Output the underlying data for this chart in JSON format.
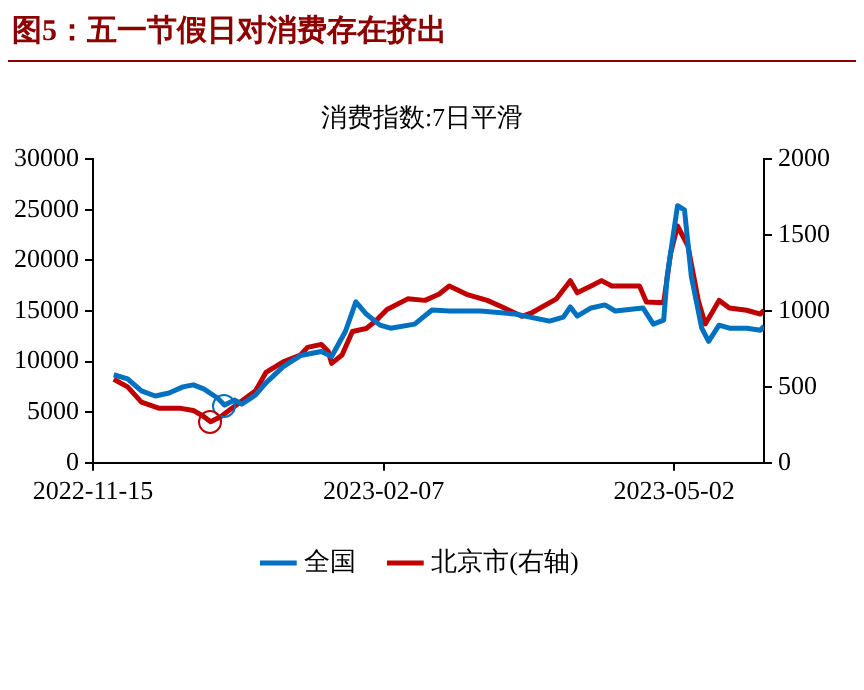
{
  "chart_data": {
    "type": "line",
    "title": "图5：五一节假日对消费存在挤出",
    "subtitle": "消费指数:7日平滑",
    "xlim": [
      "2022-11-15",
      "2023-05-28"
    ],
    "xticks": [
      "2022-11-15",
      "2023-02-07",
      "2023-05-02"
    ],
    "ylim": [
      0,
      30000
    ],
    "yticks": [
      0,
      5000,
      10000,
      15000,
      20000,
      25000,
      30000
    ],
    "y2lim": [
      0,
      2000
    ],
    "y2ticks": [
      0,
      500,
      1000,
      1500,
      2000
    ],
    "grid": false,
    "legend": "bottom",
    "marker": "none",
    "line_style": "solid",
    "series": [
      {
        "name": "全国",
        "color": "#0070c0",
        "x": [
          "2022-11-21",
          "2022-11-25",
          "2022-11-29",
          "2022-12-03",
          "2022-12-07",
          "2022-12-11",
          "2022-12-14",
          "2022-12-17",
          "2022-12-21",
          "2022-12-23",
          "2022-12-26",
          "2022-12-28",
          "2023-01-01",
          "2023-01-04",
          "2023-01-09",
          "2023-01-14",
          "2023-01-20",
          "2023-01-23",
          "2023-01-27",
          "2023-01-30",
          "2023-02-02",
          "2023-02-06",
          "2023-02-09",
          "2023-02-16",
          "2023-02-21",
          "2023-02-26",
          "2023-03-07",
          "2023-03-17",
          "2023-03-27",
          "2023-03-31",
          "2023-04-02",
          "2023-04-04",
          "2023-04-08",
          "2023-04-12",
          "2023-04-15",
          "2023-04-23",
          "2023-04-26",
          "2023-04-29",
          "2023-04-30",
          "2023-05-03",
          "2023-05-05",
          "2023-05-07",
          "2023-05-10",
          "2023-05-12",
          "2023-05-15",
          "2023-05-18",
          "2023-05-23",
          "2023-05-27",
          "2023-05-28"
        ],
        "values": [
          8700,
          8300,
          7100,
          6600,
          6900,
          7500,
          7700,
          7300,
          6400,
          5700,
          6200,
          5800,
          6700,
          7900,
          9500,
          10600,
          11000,
          10500,
          13000,
          15900,
          14700,
          13600,
          13300,
          13700,
          15100,
          15000,
          15000,
          14700,
          14000,
          14400,
          15400,
          14500,
          15300,
          15600,
          15000,
          15300,
          13700,
          14100,
          18400,
          25400,
          25000,
          18400,
          13300,
          12000,
          13600,
          13300,
          13300,
          13100,
          13500
        ]
      },
      {
        "name": "北京市(右轴)",
        "color": "#c00000",
        "axis": "y2",
        "x": [
          "2022-11-21",
          "2022-11-25",
          "2022-11-29",
          "2022-12-04",
          "2022-12-10",
          "2022-12-14",
          "2022-12-17",
          "2022-12-19",
          "2022-12-22",
          "2022-12-27",
          "2023-01-01",
          "2023-01-04",
          "2023-01-09",
          "2023-01-14",
          "2023-01-16",
          "2023-01-20",
          "2023-01-22",
          "2023-01-23",
          "2023-01-26",
          "2023-01-29",
          "2023-02-02",
          "2023-02-05",
          "2023-02-08",
          "2023-02-14",
          "2023-02-19",
          "2023-02-23",
          "2023-02-26",
          "2023-03-03",
          "2023-03-09",
          "2023-03-13",
          "2023-03-19",
          "2023-03-22",
          "2023-03-29",
          "2023-04-02",
          "2023-04-04",
          "2023-04-08",
          "2023-04-11",
          "2023-04-14",
          "2023-04-22",
          "2023-04-24",
          "2023-04-29",
          "2023-05-01",
          "2023-05-03",
          "2023-05-06",
          "2023-05-09",
          "2023-05-11",
          "2023-05-13",
          "2023-05-15",
          "2023-05-18",
          "2023-05-23",
          "2023-05-27",
          "2023-05-28"
        ],
        "values": [
          550,
          500,
          400,
          360,
          360,
          345,
          305,
          270,
          305,
          390,
          475,
          595,
          665,
          710,
          760,
          780,
          735,
          655,
          710,
          865,
          885,
          940,
          1010,
          1080,
          1070,
          1110,
          1165,
          1110,
          1070,
          1030,
          965,
          990,
          1080,
          1200,
          1120,
          1165,
          1200,
          1165,
          1165,
          1060,
          1055,
          1380,
          1560,
          1430,
          1070,
          915,
          990,
          1070,
          1020,
          1005,
          980,
          1005
        ]
      }
    ]
  }
}
